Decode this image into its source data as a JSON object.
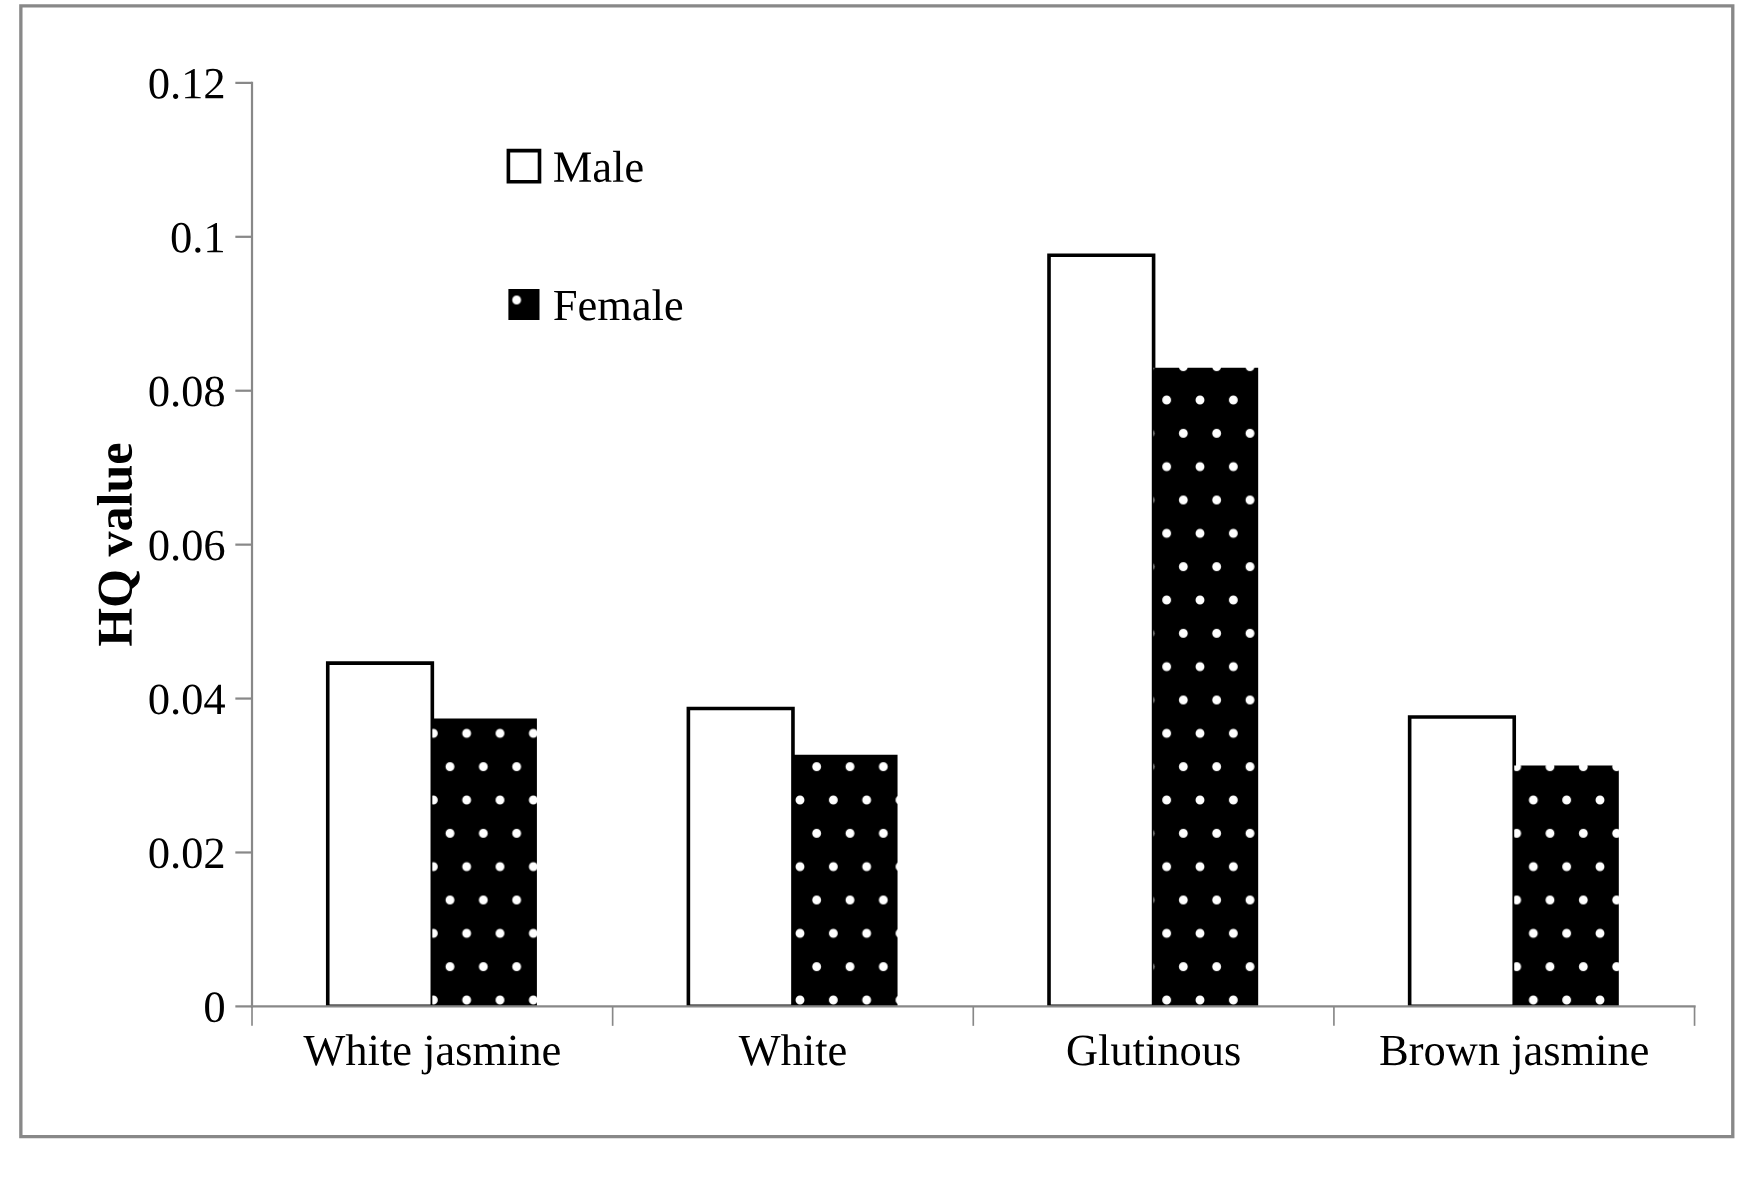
{
  "chart_data": {
    "type": "bar",
    "ylabel": "HQ value",
    "categories": [
      "White jasmine",
      "White",
      "Glutinous",
      "Brown jasmine"
    ],
    "series": [
      {
        "name": "Male",
        "color": "#ffffff",
        "values": [
          0.0446,
          0.0387,
          0.0976,
          0.0376
        ]
      },
      {
        "name": "Female",
        "color": "#000000",
        "values": [
          0.0374,
          0.0327,
          0.083,
          0.0313
        ]
      }
    ],
    "ylim": [
      0,
      0.12
    ],
    "yticks": [
      0,
      0.02,
      0.04,
      0.06,
      0.08,
      0.1,
      0.12
    ],
    "grid": false,
    "legend": "top left"
  }
}
